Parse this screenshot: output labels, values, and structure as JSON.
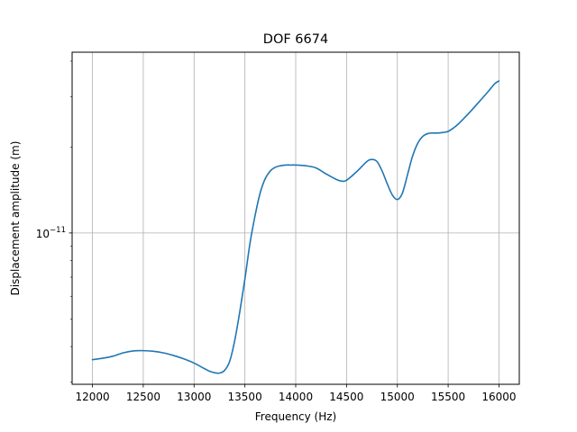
{
  "chart_data": {
    "type": "line",
    "title": "DOF 6674",
    "xlabel": "Frequency (Hz)",
    "ylabel": "Displacement amplitude (m)",
    "xlim": [
      11800,
      16200
    ],
    "ylim": [
      2.95e-12,
      4.3e-11
    ],
    "yscale": "log",
    "grid": true,
    "x_ticks": [
      12000,
      12500,
      13000,
      13500,
      14000,
      14500,
      15000,
      15500,
      16000
    ],
    "x_tick_labels": [
      "12000",
      "12500",
      "13000",
      "13500",
      "14000",
      "14500",
      "15000",
      "15500",
      "16000"
    ],
    "y_ticks": [
      1e-11
    ],
    "y_tick_labels": [
      {
        "base": "10",
        "exp": "−11"
      }
    ],
    "series": [
      {
        "color": "#1f77b4",
        "x": [
          12000,
          12100,
          12200,
          12300,
          12400,
          12500,
          12600,
          12700,
          12800,
          12900,
          13000,
          13100,
          13150,
          13200,
          13250,
          13300,
          13350,
          13400,
          13450,
          13500,
          13550,
          13600,
          13650,
          13700,
          13750,
          13800,
          13850,
          13900,
          13950,
          14000,
          14100,
          14200,
          14300,
          14400,
          14450,
          14500,
          14600,
          14700,
          14750,
          14800,
          14850,
          14900,
          14950,
          15000,
          15050,
          15100,
          15150,
          15200,
          15250,
          15300,
          15350,
          15400,
          15450,
          15500,
          15550,
          15600,
          15700,
          15800,
          15900,
          15960,
          16000
        ],
        "y": [
          3.6e-12,
          3.64e-12,
          3.7e-12,
          3.8e-12,
          3.86e-12,
          3.87e-12,
          3.85e-12,
          3.8e-12,
          3.72e-12,
          3.62e-12,
          3.5e-12,
          3.35e-12,
          3.28e-12,
          3.24e-12,
          3.23e-12,
          3.3e-12,
          3.55e-12,
          4.2e-12,
          5.3e-12,
          6.9e-12,
          9.2e-12,
          1.15e-11,
          1.38e-11,
          1.55e-11,
          1.65e-11,
          1.7e-11,
          1.72e-11,
          1.73e-11,
          1.73e-11,
          1.73e-11,
          1.72e-11,
          1.69e-11,
          1.61e-11,
          1.54e-11,
          1.52e-11,
          1.53e-11,
          1.64e-11,
          1.78e-11,
          1.81e-11,
          1.78e-11,
          1.65e-11,
          1.49e-11,
          1.36e-11,
          1.31e-11,
          1.38e-11,
          1.6e-11,
          1.86e-11,
          2.06e-11,
          2.18e-11,
          2.23e-11,
          2.24e-11,
          2.24e-11,
          2.25e-11,
          2.27e-11,
          2.33e-11,
          2.41e-11,
          2.62e-11,
          2.87e-11,
          3.15e-11,
          3.34e-11,
          3.41e-11
        ]
      }
    ]
  }
}
